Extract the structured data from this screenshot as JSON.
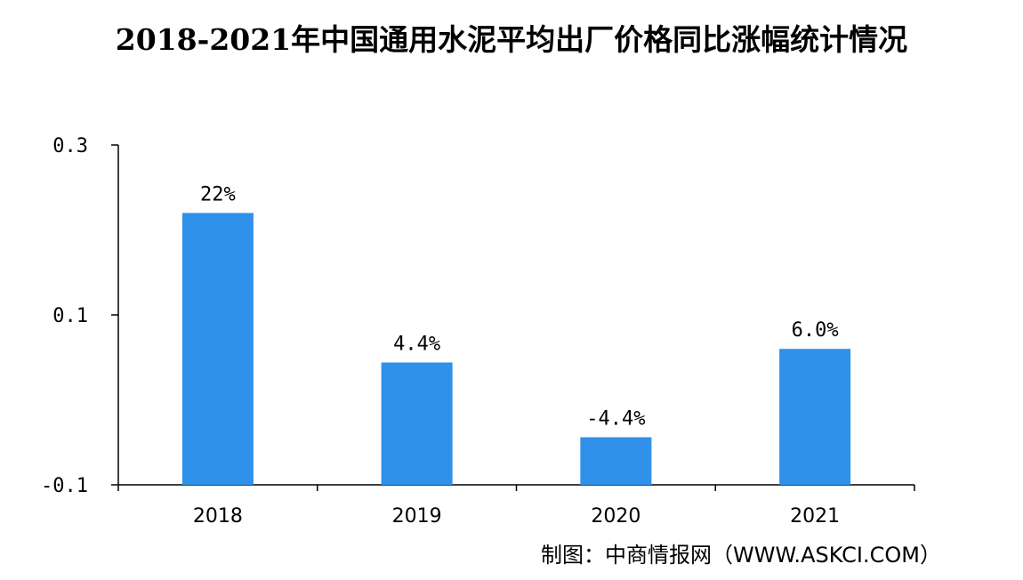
{
  "title": "2018-2021年中国通用水泥平均出厂价格同比涨幅统计情况",
  "source_label": "制图：中商情报网（WWW.ASKCI.COM）",
  "colors": {
    "bar": "#2f91ea",
    "axis": "#000000"
  },
  "chart_data": {
    "type": "bar",
    "categories": [
      "2018",
      "2019",
      "2020",
      "2021"
    ],
    "values": [
      0.22,
      0.044,
      -0.044,
      0.06
    ],
    "data_labels": [
      "22%",
      "4.4%",
      "-4.4%",
      "6.0%"
    ],
    "yticks": [
      0.3,
      0.1,
      -0.1
    ],
    "ytick_labels": [
      "0.3",
      "0.1",
      "-0.1"
    ],
    "ylim": [
      -0.1,
      0.3
    ],
    "xlabel": "",
    "ylabel": "",
    "grid": false,
    "legend": "none"
  }
}
